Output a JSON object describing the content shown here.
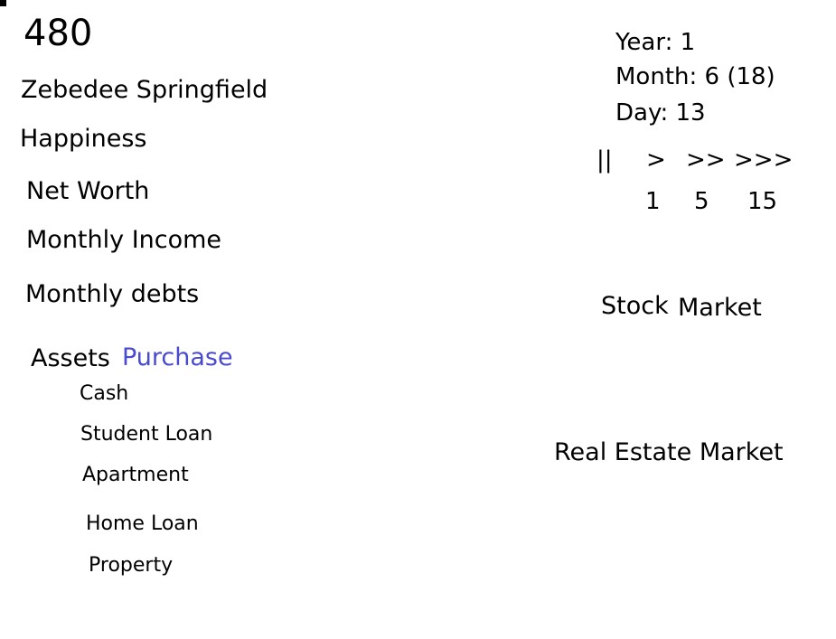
{
  "score": "480",
  "player_name": "Zebedee Springfield",
  "stats": {
    "happiness": "Happiness",
    "net_worth": "Net Worth",
    "monthly_income": "Monthly Income",
    "monthly_debts": "Monthly debts"
  },
  "assets": {
    "label": "Assets",
    "purchase_link": "Purchase",
    "purchase_color": "#4a4acf",
    "items": [
      "Cash",
      "Student Loan",
      "Apartment",
      "Home Loan",
      "Property"
    ]
  },
  "date": {
    "year": "Year: 1",
    "month": "Month: 6 (18)",
    "day": "Day: 13"
  },
  "controls": {
    "pause": "||",
    "play": ">",
    "fast": ">>",
    "fastest": ">>>",
    "speed_play": "1",
    "speed_fast": "5",
    "speed_fastest": "15"
  },
  "markets": {
    "stock_word1": "Stock",
    "stock_word2": "Market",
    "real_estate": "Real Estate Market"
  }
}
